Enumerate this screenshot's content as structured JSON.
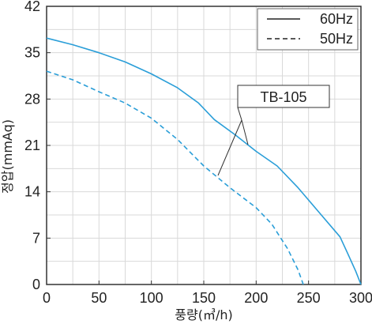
{
  "chart_data": {
    "type": "line",
    "xlabel": "풍량(㎥/h)",
    "ylabel": "정압(mmAq)",
    "xlim": [
      0,
      300
    ],
    "ylim": [
      0,
      42
    ],
    "x_ticks": [
      "0",
      "50",
      "100",
      "150",
      "200",
      "250",
      "300"
    ],
    "y_ticks": [
      "0",
      "7",
      "14",
      "21",
      "28",
      "35",
      "42"
    ],
    "x_tick_values": [
      0,
      50,
      100,
      150,
      200,
      250,
      300
    ],
    "y_tick_values": [
      0,
      7,
      14,
      21,
      28,
      35,
      42
    ],
    "x_minor_step": 25,
    "y_minor_step": 3.5,
    "grid": true,
    "legend_position": "top-right",
    "colors": {
      "curve": "#2a9ed8",
      "grid": "#d9d9d9",
      "axis": "#333333"
    },
    "series": [
      {
        "name": "60Hz",
        "style": "solid",
        "x": [
          0,
          25,
          50,
          75,
          100,
          125,
          145,
          160,
          180,
          200,
          220,
          240,
          260,
          280,
          287,
          295,
          300
        ],
        "y": [
          37.2,
          36.2,
          35.0,
          33.6,
          31.8,
          29.7,
          27.4,
          24.9,
          22.6,
          20.1,
          17.9,
          14.6,
          10.9,
          7.2,
          4.8,
          2.0,
          0
        ]
      },
      {
        "name": "50Hz",
        "style": "dashed",
        "x": [
          0,
          25,
          50,
          75,
          100,
          125,
          150,
          175,
          200,
          215,
          230,
          240,
          245
        ],
        "y": [
          32.2,
          30.9,
          29.1,
          27.4,
          25.1,
          21.9,
          17.9,
          14.6,
          11.6,
          9.1,
          5.4,
          2.2,
          0
        ]
      }
    ],
    "annotation": {
      "text": "TB-105"
    }
  }
}
